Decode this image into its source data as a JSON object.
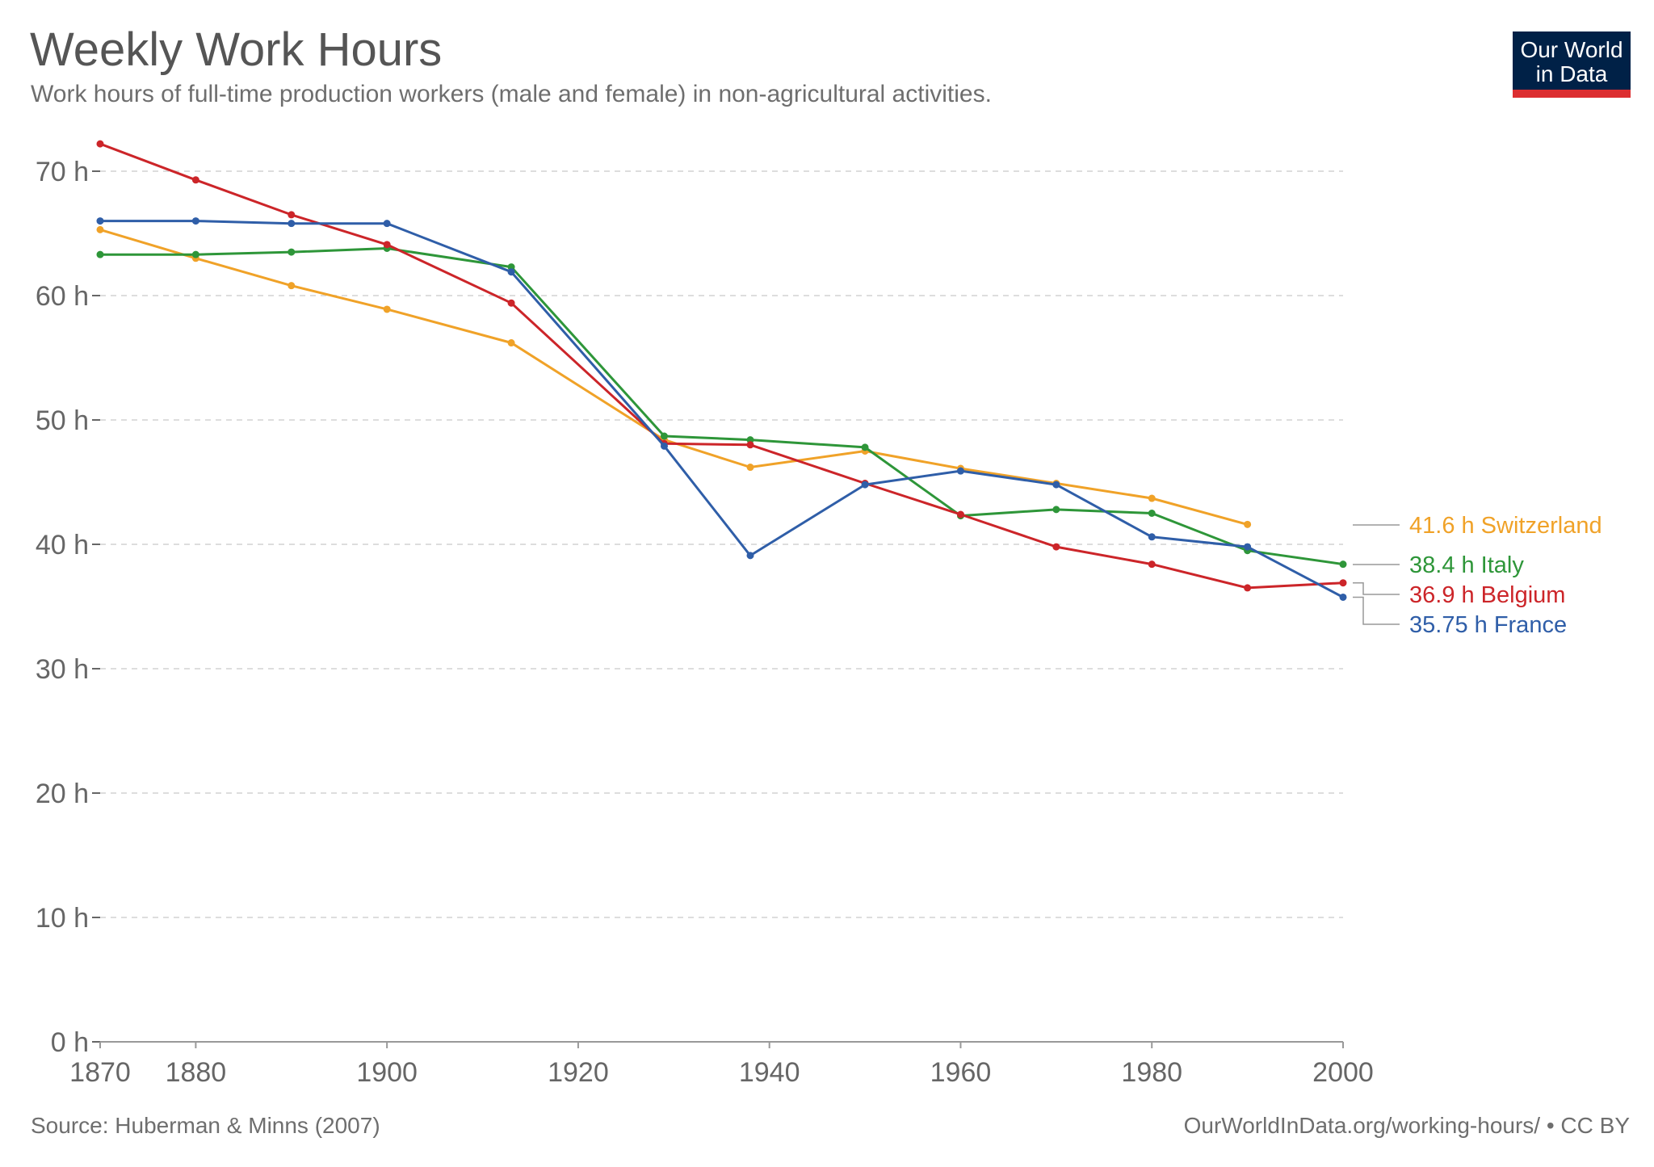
{
  "header": {
    "title": "Weekly Work Hours",
    "subtitle": "Work hours of full-time production workers (male and female) in non-agricultural activities."
  },
  "logo": {
    "line1": "Our World",
    "line2": "in Data"
  },
  "footer": {
    "source": "Source: Huberman & Minns (2007)",
    "license": "OurWorldInData.org/working-hours/ • CC BY"
  },
  "colors": {
    "switzerland": "#f0a228",
    "italy": "#2e9639",
    "belgium": "#cc2529",
    "france": "#2f5ea8",
    "grid": "#dddddd",
    "axis": "#666666"
  },
  "chart_data": {
    "type": "line",
    "title": "Weekly Work Hours",
    "subtitle": "Work hours of full-time production workers (male and female) in non-agricultural activities.",
    "xlabel": "",
    "ylabel": "",
    "xlim": [
      1870,
      2000
    ],
    "ylim": [
      0,
      70
    ],
    "x_ticks": [
      1870,
      1880,
      1900,
      1920,
      1940,
      1960,
      1980,
      2000
    ],
    "y_ticks": [
      {
        "value": 0,
        "label": "0 h"
      },
      {
        "value": 10,
        "label": "10 h"
      },
      {
        "value": 20,
        "label": "20 h"
      },
      {
        "value": 30,
        "label": "30 h"
      },
      {
        "value": 40,
        "label": "40 h"
      },
      {
        "value": 50,
        "label": "50 h"
      },
      {
        "value": 60,
        "label": "60 h"
      },
      {
        "value": 70,
        "label": "70 h"
      }
    ],
    "grid": "horizontal dashed",
    "legend": "right, end-of-line labels",
    "series": [
      {
        "name": "Switzerland",
        "color": "#f0a228",
        "end_label": "41.6 h Switzerland",
        "points": [
          [
            1870,
            65.3
          ],
          [
            1880,
            63.0
          ],
          [
            1890,
            60.8
          ],
          [
            1900,
            58.9
          ],
          [
            1913,
            56.2
          ],
          [
            1929,
            48.4
          ],
          [
            1938,
            46.2
          ],
          [
            1950,
            47.5
          ],
          [
            1960,
            46.1
          ],
          [
            1970,
            44.9
          ],
          [
            1980,
            43.7
          ],
          [
            1990,
            41.6
          ]
        ]
      },
      {
        "name": "Italy",
        "color": "#2e9639",
        "end_label": "38.4 h Italy",
        "points": [
          [
            1870,
            63.3
          ],
          [
            1880,
            63.3
          ],
          [
            1890,
            63.5
          ],
          [
            1900,
            63.8
          ],
          [
            1913,
            62.3
          ],
          [
            1929,
            48.7
          ],
          [
            1938,
            48.4
          ],
          [
            1950,
            47.8
          ],
          [
            1960,
            42.3
          ],
          [
            1970,
            42.8
          ],
          [
            1980,
            42.5
          ],
          [
            1990,
            39.5
          ],
          [
            2000,
            38.4
          ]
        ]
      },
      {
        "name": "Belgium",
        "color": "#cc2529",
        "end_label": "36.9 h Belgium",
        "points": [
          [
            1870,
            72.2
          ],
          [
            1880,
            69.3
          ],
          [
            1890,
            66.5
          ],
          [
            1900,
            64.1
          ],
          [
            1913,
            59.4
          ],
          [
            1929,
            48.1
          ],
          [
            1938,
            48.0
          ],
          [
            1950,
            44.9
          ],
          [
            1960,
            42.4
          ],
          [
            1970,
            39.8
          ],
          [
            1980,
            38.4
          ],
          [
            1990,
            36.5
          ],
          [
            2000,
            36.9
          ]
        ]
      },
      {
        "name": "France",
        "color": "#2f5ea8",
        "end_label": "35.75 h France",
        "points": [
          [
            1870,
            66.0
          ],
          [
            1880,
            66.0
          ],
          [
            1890,
            65.8
          ],
          [
            1900,
            65.8
          ],
          [
            1913,
            61.9
          ],
          [
            1929,
            47.9
          ],
          [
            1938,
            39.1
          ],
          [
            1950,
            44.8
          ],
          [
            1960,
            45.9
          ],
          [
            1970,
            44.8
          ],
          [
            1980,
            40.6
          ],
          [
            1990,
            39.8
          ],
          [
            2000,
            35.75
          ]
        ]
      }
    ]
  }
}
